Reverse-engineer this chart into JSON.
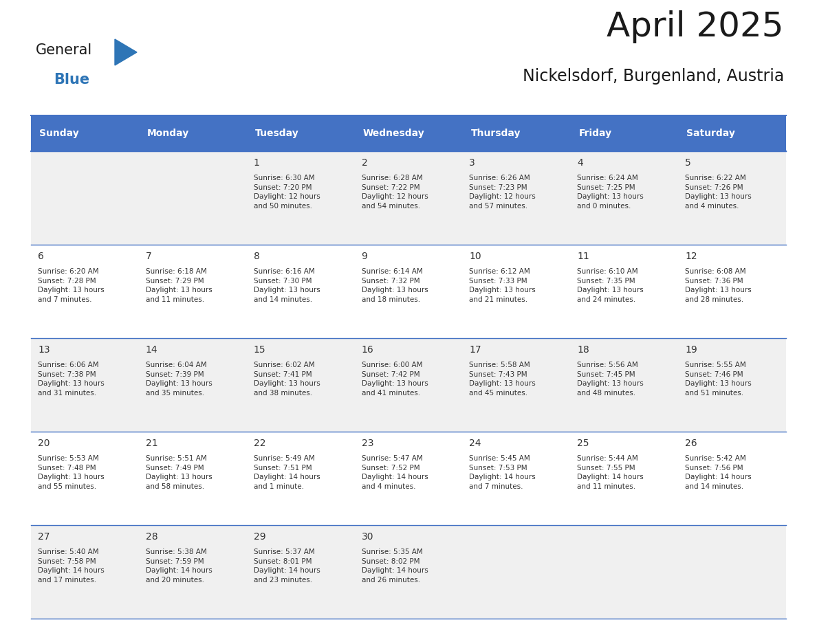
{
  "title": "April 2025",
  "subtitle": "Nickelsdorf, Burgenland, Austria",
  "header_bg": "#4472C4",
  "header_text_color": "#FFFFFF",
  "days_of_week": [
    "Sunday",
    "Monday",
    "Tuesday",
    "Wednesday",
    "Thursday",
    "Friday",
    "Saturday"
  ],
  "cell_bg_even": "#F0F0F0",
  "cell_bg_odd": "#FFFFFF",
  "cell_text_color": "#333333",
  "title_color": "#1a1a1a",
  "subtitle_color": "#1a1a1a",
  "grid_color": "#4472C4",
  "logo_text_general": "General",
  "logo_text_blue": "Blue",
  "logo_color_general": "#1a1a1a",
  "logo_color_blue": "#2E75B6",
  "triangle_color": "#2E75B6",
  "weeks": [
    [
      {
        "day": "",
        "info": ""
      },
      {
        "day": "",
        "info": ""
      },
      {
        "day": "1",
        "info": "Sunrise: 6:30 AM\nSunset: 7:20 PM\nDaylight: 12 hours\nand 50 minutes."
      },
      {
        "day": "2",
        "info": "Sunrise: 6:28 AM\nSunset: 7:22 PM\nDaylight: 12 hours\nand 54 minutes."
      },
      {
        "day": "3",
        "info": "Sunrise: 6:26 AM\nSunset: 7:23 PM\nDaylight: 12 hours\nand 57 minutes."
      },
      {
        "day": "4",
        "info": "Sunrise: 6:24 AM\nSunset: 7:25 PM\nDaylight: 13 hours\nand 0 minutes."
      },
      {
        "day": "5",
        "info": "Sunrise: 6:22 AM\nSunset: 7:26 PM\nDaylight: 13 hours\nand 4 minutes."
      }
    ],
    [
      {
        "day": "6",
        "info": "Sunrise: 6:20 AM\nSunset: 7:28 PM\nDaylight: 13 hours\nand 7 minutes."
      },
      {
        "day": "7",
        "info": "Sunrise: 6:18 AM\nSunset: 7:29 PM\nDaylight: 13 hours\nand 11 minutes."
      },
      {
        "day": "8",
        "info": "Sunrise: 6:16 AM\nSunset: 7:30 PM\nDaylight: 13 hours\nand 14 minutes."
      },
      {
        "day": "9",
        "info": "Sunrise: 6:14 AM\nSunset: 7:32 PM\nDaylight: 13 hours\nand 18 minutes."
      },
      {
        "day": "10",
        "info": "Sunrise: 6:12 AM\nSunset: 7:33 PM\nDaylight: 13 hours\nand 21 minutes."
      },
      {
        "day": "11",
        "info": "Sunrise: 6:10 AM\nSunset: 7:35 PM\nDaylight: 13 hours\nand 24 minutes."
      },
      {
        "day": "12",
        "info": "Sunrise: 6:08 AM\nSunset: 7:36 PM\nDaylight: 13 hours\nand 28 minutes."
      }
    ],
    [
      {
        "day": "13",
        "info": "Sunrise: 6:06 AM\nSunset: 7:38 PM\nDaylight: 13 hours\nand 31 minutes."
      },
      {
        "day": "14",
        "info": "Sunrise: 6:04 AM\nSunset: 7:39 PM\nDaylight: 13 hours\nand 35 minutes."
      },
      {
        "day": "15",
        "info": "Sunrise: 6:02 AM\nSunset: 7:41 PM\nDaylight: 13 hours\nand 38 minutes."
      },
      {
        "day": "16",
        "info": "Sunrise: 6:00 AM\nSunset: 7:42 PM\nDaylight: 13 hours\nand 41 minutes."
      },
      {
        "day": "17",
        "info": "Sunrise: 5:58 AM\nSunset: 7:43 PM\nDaylight: 13 hours\nand 45 minutes."
      },
      {
        "day": "18",
        "info": "Sunrise: 5:56 AM\nSunset: 7:45 PM\nDaylight: 13 hours\nand 48 minutes."
      },
      {
        "day": "19",
        "info": "Sunrise: 5:55 AM\nSunset: 7:46 PM\nDaylight: 13 hours\nand 51 minutes."
      }
    ],
    [
      {
        "day": "20",
        "info": "Sunrise: 5:53 AM\nSunset: 7:48 PM\nDaylight: 13 hours\nand 55 minutes."
      },
      {
        "day": "21",
        "info": "Sunrise: 5:51 AM\nSunset: 7:49 PM\nDaylight: 13 hours\nand 58 minutes."
      },
      {
        "day": "22",
        "info": "Sunrise: 5:49 AM\nSunset: 7:51 PM\nDaylight: 14 hours\nand 1 minute."
      },
      {
        "day": "23",
        "info": "Sunrise: 5:47 AM\nSunset: 7:52 PM\nDaylight: 14 hours\nand 4 minutes."
      },
      {
        "day": "24",
        "info": "Sunrise: 5:45 AM\nSunset: 7:53 PM\nDaylight: 14 hours\nand 7 minutes."
      },
      {
        "day": "25",
        "info": "Sunrise: 5:44 AM\nSunset: 7:55 PM\nDaylight: 14 hours\nand 11 minutes."
      },
      {
        "day": "26",
        "info": "Sunrise: 5:42 AM\nSunset: 7:56 PM\nDaylight: 14 hours\nand 14 minutes."
      }
    ],
    [
      {
        "day": "27",
        "info": "Sunrise: 5:40 AM\nSunset: 7:58 PM\nDaylight: 14 hours\nand 17 minutes."
      },
      {
        "day": "28",
        "info": "Sunrise: 5:38 AM\nSunset: 7:59 PM\nDaylight: 14 hours\nand 20 minutes."
      },
      {
        "day": "29",
        "info": "Sunrise: 5:37 AM\nSunset: 8:01 PM\nDaylight: 14 hours\nand 23 minutes."
      },
      {
        "day": "30",
        "info": "Sunrise: 5:35 AM\nSunset: 8:02 PM\nDaylight: 14 hours\nand 26 minutes."
      },
      {
        "day": "",
        "info": ""
      },
      {
        "day": "",
        "info": ""
      },
      {
        "day": "",
        "info": ""
      }
    ]
  ]
}
